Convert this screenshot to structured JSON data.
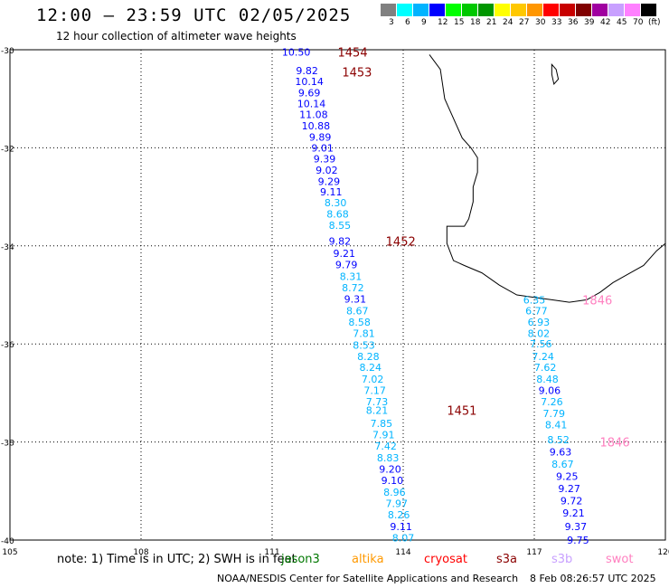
{
  "header": {
    "title": "12:00 – 23:59 UTC 02/05/2025",
    "subtitle": "12 hour collection of altimeter wave heights"
  },
  "legend": {
    "bins": [
      {
        "label": "3",
        "color": "#808080"
      },
      {
        "label": "6",
        "color": "#00ffff"
      },
      {
        "label": "9",
        "color": "#00b4ff"
      },
      {
        "label": "12",
        "color": "#0000ff"
      },
      {
        "label": "15",
        "color": "#00ff00"
      },
      {
        "label": "18",
        "color": "#00c800"
      },
      {
        "label": "21",
        "color": "#009600"
      },
      {
        "label": "24",
        "color": "#ffff00"
      },
      {
        "label": "27",
        "color": "#ffc800"
      },
      {
        "label": "30",
        "color": "#ff9600"
      },
      {
        "label": "33",
        "color": "#ff0000"
      },
      {
        "label": "36",
        "color": "#c80000"
      },
      {
        "label": "39",
        "color": "#800000"
      },
      {
        "label": "42",
        "color": "#a000a0"
      },
      {
        "label": "45",
        "color": "#c8a0ff"
      },
      {
        "label": "70",
        "color": "#ff80ff"
      },
      {
        "label": "",
        "color": "#000000"
      }
    ],
    "unit": "(ft)"
  },
  "axes": {
    "lat_ticks": [
      "-30",
      "-32",
      "-34",
      "-36",
      "-38",
      "-40"
    ],
    "lon_ticks": [
      "105",
      "108",
      "111",
      "114",
      "117",
      "120"
    ],
    "lat_values": [
      -30,
      -32,
      -34,
      -36,
      -38,
      -40
    ],
    "lon_values": [
      105,
      108,
      111,
      114,
      117,
      120
    ],
    "lon_range": [
      105,
      120
    ],
    "lat_range": [
      -40,
      -30
    ]
  },
  "footer": {
    "note": "note:  1) Time is in UTC; 2) SWH is in feet",
    "satellites": [
      {
        "name": "jason3",
        "color": "#007700"
      },
      {
        "name": "altika",
        "color": "#ff9900"
      },
      {
        "name": "cryosat",
        "color": "#ff0000"
      },
      {
        "name": "s3a",
        "color": "#8b0000"
      },
      {
        "name": "s3b",
        "color": "#c8a0ff"
      },
      {
        "name": "swot",
        "color": "#ff80c0"
      }
    ],
    "credit": "NOAA/NESDIS Center for Satellite Applications and Research",
    "generated": "8 Feb 08:26:57 UTC 2025"
  },
  "passes": [
    {
      "label": "1454",
      "lon": 112.5,
      "lat": -30.05,
      "color": "#8b0000"
    },
    {
      "label": "1453",
      "lon": 112.6,
      "lat": -30.45,
      "color": "#8b0000"
    },
    {
      "label": "1452",
      "lon": 113.6,
      "lat": -33.9,
      "color": "#8b0000"
    },
    {
      "label": "1451",
      "lon": 115.0,
      "lat": -37.35,
      "color": "#8b0000"
    },
    {
      "label": "1846",
      "lon": 118.1,
      "lat": -35.1,
      "color": "#ff80c0"
    },
    {
      "label": "1846",
      "lon": 118.5,
      "lat": -38.0,
      "color": "#ff80c0"
    }
  ],
  "track_a": [
    {
      "v": "10.50",
      "lon": 111.55,
      "lat": -30.05,
      "c": "#0000ff"
    },
    {
      "v": "9.82",
      "lon": 111.8,
      "lat": -30.42,
      "c": "#0000ff"
    },
    {
      "v": "10.14",
      "lon": 111.85,
      "lat": -30.65,
      "c": "#0000ff"
    },
    {
      "v": "9.69",
      "lon": 111.85,
      "lat": -30.88,
      "c": "#0000ff"
    },
    {
      "v": "10.14",
      "lon": 111.9,
      "lat": -31.1,
      "c": "#0000ff"
    },
    {
      "v": "11.08",
      "lon": 111.95,
      "lat": -31.32,
      "c": "#0000ff"
    },
    {
      "v": "10.88",
      "lon": 112.0,
      "lat": -31.55,
      "c": "#0000ff"
    },
    {
      "v": "9.89",
      "lon": 112.1,
      "lat": -31.78,
      "c": "#0000ff"
    },
    {
      "v": "9.01",
      "lon": 112.15,
      "lat": -32.0,
      "c": "#0000ff"
    },
    {
      "v": "9.39",
      "lon": 112.2,
      "lat": -32.22,
      "c": "#0000ff"
    },
    {
      "v": "9.02",
      "lon": 112.25,
      "lat": -32.45,
      "c": "#0000ff"
    },
    {
      "v": "9.29",
      "lon": 112.3,
      "lat": -32.68,
      "c": "#0000ff"
    },
    {
      "v": "9.11",
      "lon": 112.35,
      "lat": -32.9,
      "c": "#0000ff"
    },
    {
      "v": "8.30",
      "lon": 112.45,
      "lat": -33.12,
      "c": "#00b4ff"
    },
    {
      "v": "8.68",
      "lon": 112.5,
      "lat": -33.35,
      "c": "#00b4ff"
    },
    {
      "v": "8.55",
      "lon": 112.55,
      "lat": -33.58,
      "c": "#00b4ff"
    },
    {
      "v": "9.82",
      "lon": 112.55,
      "lat": -33.9,
      "c": "#0000ff"
    },
    {
      "v": "9.21",
      "lon": 112.65,
      "lat": -34.15,
      "c": "#0000ff"
    },
    {
      "v": "9.79",
      "lon": 112.7,
      "lat": -34.38,
      "c": "#0000ff"
    },
    {
      "v": "8.31",
      "lon": 112.8,
      "lat": -34.62,
      "c": "#00b4ff"
    },
    {
      "v": "8.72",
      "lon": 112.85,
      "lat": -34.85,
      "c": "#00b4ff"
    },
    {
      "v": "9.31",
      "lon": 112.9,
      "lat": -35.08,
      "c": "#0000ff"
    },
    {
      "v": "8.67",
      "lon": 112.95,
      "lat": -35.32,
      "c": "#00b4ff"
    },
    {
      "v": "8.58",
      "lon": 113.0,
      "lat": -35.55,
      "c": "#00b4ff"
    },
    {
      "v": "7.81",
      "lon": 113.1,
      "lat": -35.78,
      "c": "#00b4ff"
    },
    {
      "v": "8.53",
      "lon": 113.1,
      "lat": -36.02,
      "c": "#00b4ff"
    },
    {
      "v": "8.28",
      "lon": 113.2,
      "lat": -36.25,
      "c": "#00b4ff"
    },
    {
      "v": "8.24",
      "lon": 113.25,
      "lat": -36.48,
      "c": "#00b4ff"
    },
    {
      "v": "7.02",
      "lon": 113.3,
      "lat": -36.72,
      "c": "#00b4ff"
    },
    {
      "v": "7.17",
      "lon": 113.35,
      "lat": -36.95,
      "c": "#00b4ff"
    },
    {
      "v": "7.73",
      "lon": 113.4,
      "lat": -37.18,
      "c": "#00b4ff"
    },
    {
      "v": "8.21",
      "lon": 113.4,
      "lat": -37.35,
      "c": "#00b4ff"
    },
    {
      "v": "7.85",
      "lon": 113.5,
      "lat": -37.62,
      "c": "#00b4ff"
    },
    {
      "v": "7.91",
      "lon": 113.55,
      "lat": -37.85,
      "c": "#00b4ff"
    },
    {
      "v": "7.42",
      "lon": 113.6,
      "lat": -38.08,
      "c": "#00b4ff"
    },
    {
      "v": "8.83",
      "lon": 113.65,
      "lat": -38.32,
      "c": "#00b4ff"
    },
    {
      "v": "9.20",
      "lon": 113.7,
      "lat": -38.55,
      "c": "#0000ff"
    },
    {
      "v": "9.10",
      "lon": 113.75,
      "lat": -38.78,
      "c": "#0000ff"
    },
    {
      "v": "8.96",
      "lon": 113.8,
      "lat": -39.02,
      "c": "#00b4ff"
    },
    {
      "v": "7.97",
      "lon": 113.85,
      "lat": -39.25,
      "c": "#00b4ff"
    },
    {
      "v": "8.26",
      "lon": 113.9,
      "lat": -39.48,
      "c": "#00b4ff"
    },
    {
      "v": "9.11",
      "lon": 113.95,
      "lat": -39.72,
      "c": "#0000ff"
    },
    {
      "v": "8.07",
      "lon": 114.0,
      "lat": -39.95,
      "c": "#00b4ff"
    }
  ],
  "track_b": [
    {
      "v": "6.35",
      "lon": 117.0,
      "lat": -35.1,
      "c": "#00b4ff"
    },
    {
      "v": "6.77",
      "lon": 117.05,
      "lat": -35.32,
      "c": "#00b4ff"
    },
    {
      "v": "6.93",
      "lon": 117.1,
      "lat": -35.55,
      "c": "#00b4ff"
    },
    {
      "v": "8.02",
      "lon": 117.1,
      "lat": -35.78,
      "c": "#00b4ff"
    },
    {
      "v": "7.56",
      "lon": 117.15,
      "lat": -36.0,
      "c": "#00b4ff"
    },
    {
      "v": "7.24",
      "lon": 117.2,
      "lat": -36.25,
      "c": "#00b4ff"
    },
    {
      "v": "7.62",
      "lon": 117.25,
      "lat": -36.48,
      "c": "#00b4ff"
    },
    {
      "v": "8.48",
      "lon": 117.3,
      "lat": -36.72,
      "c": "#00b4ff"
    },
    {
      "v": "9.06",
      "lon": 117.35,
      "lat": -36.95,
      "c": "#0000ff"
    },
    {
      "v": "7.26",
      "lon": 117.4,
      "lat": -37.18,
      "c": "#00b4ff"
    },
    {
      "v": "7.79",
      "lon": 117.45,
      "lat": -37.42,
      "c": "#00b4ff"
    },
    {
      "v": "8.41",
      "lon": 117.5,
      "lat": -37.65,
      "c": "#00b4ff"
    },
    {
      "v": "8.52",
      "lon": 117.55,
      "lat": -37.95,
      "c": "#00b4ff"
    },
    {
      "v": "9.63",
      "lon": 117.6,
      "lat": -38.2,
      "c": "#0000ff"
    },
    {
      "v": "8.67",
      "lon": 117.65,
      "lat": -38.45,
      "c": "#00b4ff"
    },
    {
      "v": "9.25",
      "lon": 117.75,
      "lat": -38.7,
      "c": "#0000ff"
    },
    {
      "v": "9.27",
      "lon": 117.8,
      "lat": -38.95,
      "c": "#0000ff"
    },
    {
      "v": "9.72",
      "lon": 117.85,
      "lat": -39.2,
      "c": "#0000ff"
    },
    {
      "v": "9.21",
      "lon": 117.9,
      "lat": -39.45,
      "c": "#0000ff"
    },
    {
      "v": "9.37",
      "lon": 117.95,
      "lat": -39.72,
      "c": "#0000ff"
    },
    {
      "v": "9.75",
      "lon": 118.0,
      "lat": -40.0,
      "c": "#0000ff"
    }
  ],
  "coastline": [
    [
      114.6,
      -30.1
    ],
    [
      114.85,
      -30.4
    ],
    [
      114.9,
      -30.7
    ],
    [
      114.95,
      -31.0
    ],
    [
      115.05,
      -31.2
    ],
    [
      115.2,
      -31.5
    ],
    [
      115.35,
      -31.8
    ],
    [
      115.55,
      -32.0
    ],
    [
      115.7,
      -32.2
    ],
    [
      115.7,
      -32.5
    ],
    [
      115.6,
      -32.8
    ],
    [
      115.6,
      -33.1
    ],
    [
      115.5,
      -33.45
    ],
    [
      115.4,
      -33.6
    ],
    [
      115.1,
      -33.6
    ],
    [
      115.0,
      -33.6
    ],
    [
      115.0,
      -33.95
    ],
    [
      115.15,
      -34.3
    ],
    [
      115.4,
      -34.4
    ],
    [
      115.8,
      -34.55
    ],
    [
      116.2,
      -34.8
    ],
    [
      116.6,
      -35.0
    ],
    [
      117.0,
      -35.05
    ],
    [
      117.4,
      -35.1
    ],
    [
      117.8,
      -35.15
    ],
    [
      118.2,
      -35.1
    ],
    [
      118.5,
      -34.95
    ],
    [
      118.8,
      -34.75
    ],
    [
      119.2,
      -34.55
    ],
    [
      119.5,
      -34.4
    ],
    [
      119.8,
      -34.1
    ],
    [
      120.0,
      -33.95
    ]
  ],
  "island": [
    [
      117.4,
      -30.3
    ],
    [
      117.5,
      -30.4
    ],
    [
      117.55,
      -30.6
    ],
    [
      117.45,
      -30.7
    ],
    [
      117.4,
      -30.5
    ]
  ]
}
